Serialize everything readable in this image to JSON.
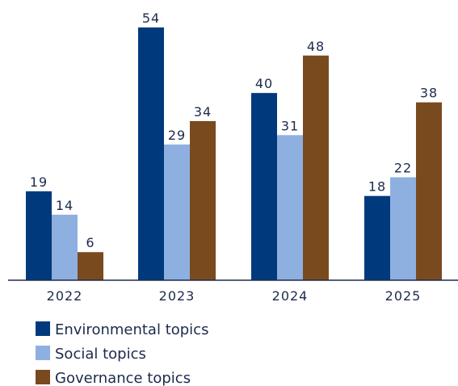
{
  "chart_data": {
    "type": "bar",
    "categories": [
      "2022",
      "2023",
      "2024",
      "2025"
    ],
    "series": [
      {
        "name": "Environmental topics",
        "values": [
          19,
          54,
          40,
          18
        ],
        "color": "#003a7d"
      },
      {
        "name": "Social topics",
        "values": [
          14,
          29,
          31,
          22
        ],
        "color": "#8eb0e0"
      },
      {
        "name": "Governance topics",
        "values": [
          6,
          34,
          48,
          38
        ],
        "color": "#7a4a1f"
      }
    ],
    "ylim": [
      0,
      60
    ],
    "grid": false,
    "legend": "bottom-left",
    "data_labels": true
  }
}
